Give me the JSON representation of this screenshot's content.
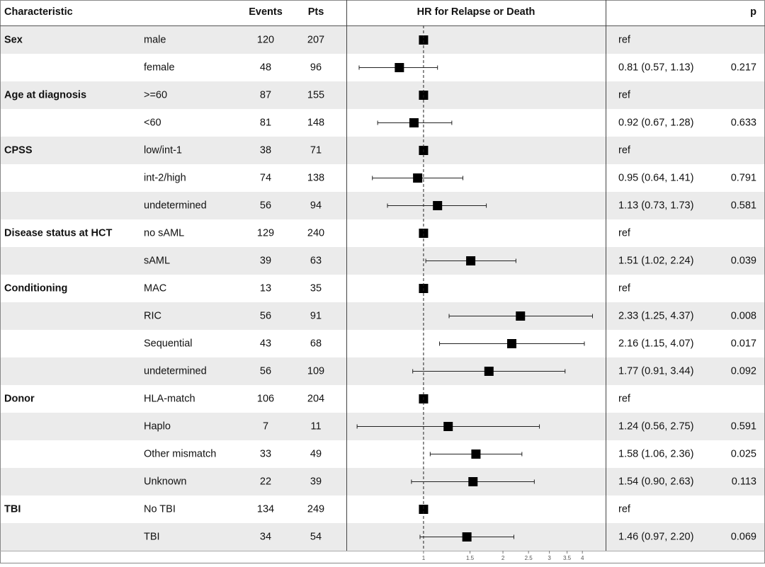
{
  "chart_data": {
    "type": "forest",
    "columns": [
      "Characteristic",
      "Events",
      "Pts",
      "HR for Relapse or Death",
      "p"
    ],
    "groups": [
      "Sex",
      null,
      "Age at diagnosis",
      null,
      "CPSS",
      null,
      null,
      "Disease status at HCT",
      null,
      "Conditioning",
      null,
      null,
      null,
      "Donor",
      null,
      null,
      null,
      "TBI",
      null
    ],
    "categories": [
      "male",
      "female",
      ">=60",
      "<60",
      "low/int-1",
      "int-2/high",
      "undetermined",
      "no sAML",
      "sAML",
      "MAC",
      "RIC",
      "Sequential",
      "undetermined",
      "HLA-match",
      "Haplo",
      "Other mismatch",
      "Unknown",
      "No TBI",
      "TBI"
    ],
    "events": [
      120,
      48,
      87,
      81,
      38,
      74,
      56,
      129,
      39,
      13,
      56,
      43,
      56,
      106,
      7,
      33,
      22,
      134,
      34
    ],
    "pts": [
      207,
      96,
      155,
      148,
      71,
      138,
      94,
      240,
      63,
      35,
      91,
      68,
      109,
      204,
      11,
      49,
      39,
      249,
      54
    ],
    "values": [
      1,
      0.81,
      1,
      0.92,
      1,
      0.95,
      1.13,
      1,
      1.51,
      1,
      2.33,
      2.16,
      1.77,
      1,
      1.24,
      1.58,
      1.54,
      1,
      1.46
    ],
    "lower": [
      null,
      0.57,
      null,
      0.67,
      null,
      0.64,
      0.73,
      null,
      1.02,
      null,
      1.25,
      1.15,
      0.91,
      null,
      0.56,
      1.06,
      0.9,
      null,
      0.97
    ],
    "upper": [
      null,
      1.13,
      null,
      1.28,
      null,
      1.41,
      1.73,
      null,
      2.24,
      null,
      4.37,
      4.07,
      3.44,
      null,
      2.75,
      2.36,
      2.63,
      null,
      2.2
    ],
    "value_labels": [
      "ref",
      "0.81 (0.57, 1.13)",
      "ref",
      "0.92 (0.67, 1.28)",
      "ref",
      "0.95 (0.64, 1.41)",
      "1.13 (0.73, 1.73)",
      "ref",
      "1.51 (1.02, 2.24)",
      "ref",
      "2.33 (1.25, 4.37)",
      "2.16 (1.15, 4.07)",
      "1.77 (0.91, 3.44)",
      "ref",
      "1.24 (0.56, 2.75)",
      "1.58 (1.06, 2.36)",
      "1.54 (0.90, 2.63)",
      "ref",
      "1.46 (0.97, 2.20)"
    ],
    "p_values": [
      null,
      0.217,
      null,
      0.633,
      null,
      0.791,
      0.581,
      null,
      0.039,
      null,
      0.008,
      0.017,
      0.092,
      null,
      0.591,
      0.025,
      0.113,
      null,
      0.069
    ],
    "xlim": [
      0.51,
      4.9
    ],
    "xticks": [
      1,
      1.5,
      2,
      2.5,
      3,
      3.5,
      4
    ],
    "log_x": true,
    "color": "#000000"
  }
}
